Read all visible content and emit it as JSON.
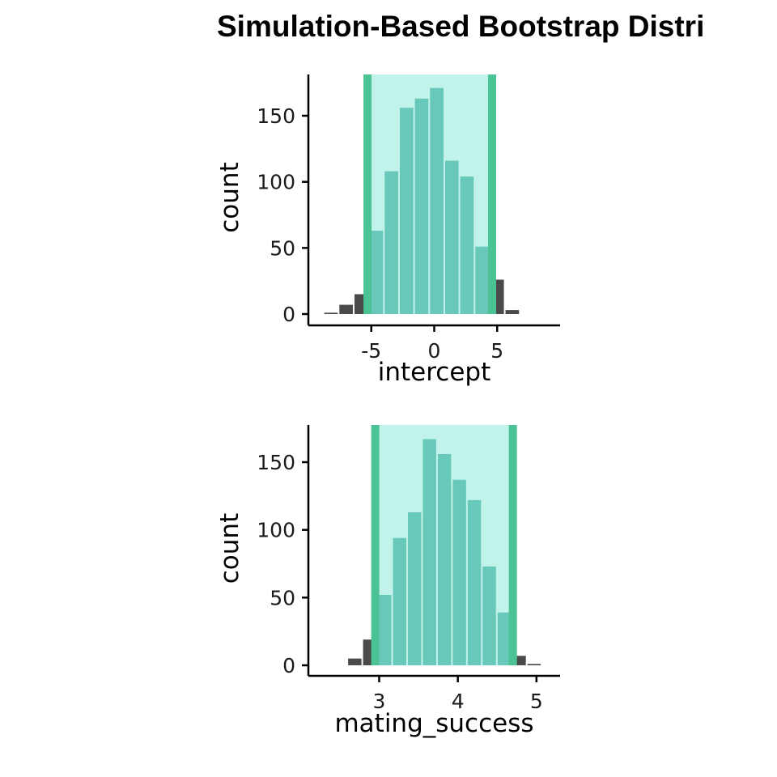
{
  "title": "Simulation-Based Bootstrap Distri",
  "colors": {
    "bar": "#4a4a4a",
    "ci_fill": "#8eeadb",
    "ci_bar": "#3ba190",
    "ci_edge": "#4cc394",
    "axis": "#000000"
  },
  "chart_data": [
    {
      "type": "bar",
      "xlabel": "intercept",
      "ylabel": "count",
      "xlim": [
        -10,
        10
      ],
      "ylim": [
        0,
        180
      ],
      "xticks": [
        -5,
        0,
        5
      ],
      "xtick_labels": [
        "-5",
        "0",
        "5"
      ],
      "yticks": [
        0,
        50,
        100,
        150
      ],
      "ytick_labels": [
        "0",
        "50",
        "100",
        "150"
      ],
      "bin_width": 1.2,
      "ci": [
        -5.3,
        4.6
      ],
      "bins": [
        {
          "x": -8.2,
          "count": 1
        },
        {
          "x": -7.0,
          "count": 7
        },
        {
          "x": -5.8,
          "count": 15
        },
        {
          "x": -4.6,
          "count": 63
        },
        {
          "x": -3.4,
          "count": 108
        },
        {
          "x": -2.2,
          "count": 156
        },
        {
          "x": -1.0,
          "count": 163
        },
        {
          "x": 0.2,
          "count": 171
        },
        {
          "x": 1.4,
          "count": 116
        },
        {
          "x": 2.6,
          "count": 104
        },
        {
          "x": 3.8,
          "count": 51
        },
        {
          "x": 5.0,
          "count": 26
        },
        {
          "x": 6.2,
          "count": 3
        }
      ]
    },
    {
      "type": "bar",
      "xlabel": "mating_success",
      "ylabel": "count",
      "xlim": [
        2.1,
        5.3
      ],
      "ylim": [
        0,
        180
      ],
      "xticks": [
        3,
        4,
        5
      ],
      "xtick_labels": [
        "3",
        "4",
        "5"
      ],
      "yticks": [
        0,
        50,
        100,
        150
      ],
      "ytick_labels": [
        "0",
        "50",
        "100",
        "150"
      ],
      "bin_width": 0.19,
      "ci": [
        2.95,
        4.7
      ],
      "bins": [
        {
          "x": 2.69,
          "count": 5
        },
        {
          "x": 2.88,
          "count": 19
        },
        {
          "x": 3.07,
          "count": 52
        },
        {
          "x": 3.26,
          "count": 94
        },
        {
          "x": 3.45,
          "count": 113
        },
        {
          "x": 3.64,
          "count": 167
        },
        {
          "x": 3.83,
          "count": 156
        },
        {
          "x": 4.02,
          "count": 137
        },
        {
          "x": 4.21,
          "count": 122
        },
        {
          "x": 4.4,
          "count": 73
        },
        {
          "x": 4.59,
          "count": 39
        },
        {
          "x": 4.78,
          "count": 7
        },
        {
          "x": 4.97,
          "count": 1
        }
      ]
    }
  ]
}
